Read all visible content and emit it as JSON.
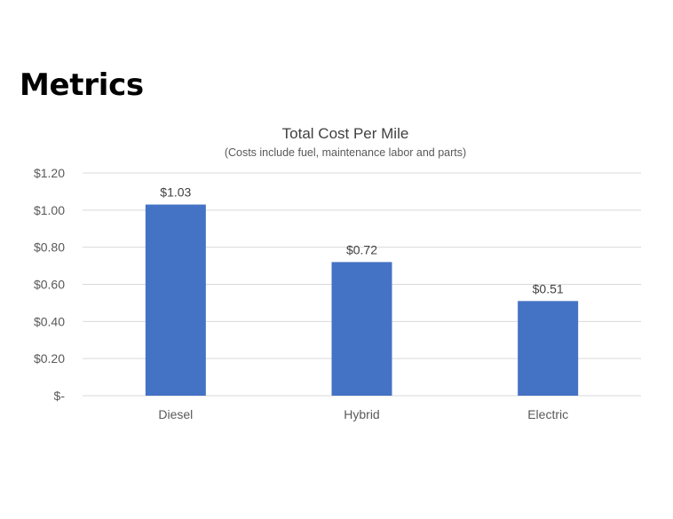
{
  "page": {
    "heading": "Metrics"
  },
  "chart_data": {
    "type": "bar",
    "title": "Total Cost Per Mile",
    "subtitle": "(Costs include fuel, maintenance labor and parts)",
    "categories": [
      "Diesel",
      "Hybrid",
      "Electric"
    ],
    "values": [
      1.03,
      0.72,
      0.51
    ],
    "data_labels": [
      "$1.03",
      "$0.72",
      "$0.51"
    ],
    "y_ticks": [
      0,
      0.2,
      0.4,
      0.6,
      0.8,
      1.0,
      1.2
    ],
    "y_tick_labels": [
      "$-",
      "$0.20",
      "$0.40",
      "$0.60",
      "$0.80",
      "$1.00",
      "$1.20"
    ],
    "ylim": [
      0,
      1.2
    ],
    "xlabel": "",
    "ylabel": "",
    "grid": true,
    "legend": "none",
    "colors": {
      "bar": "#4472C4",
      "grid": "#d9d9d9",
      "text": "#595959",
      "title": "#404040"
    }
  }
}
